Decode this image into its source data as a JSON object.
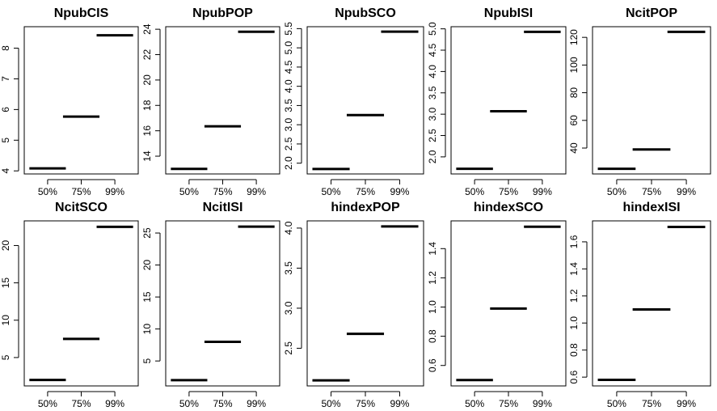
{
  "chart_data": [
    {
      "type": "bar",
      "title": "NpubCIS",
      "categories": [
        "50%",
        "75%",
        "99%"
      ],
      "values": [
        4.08,
        5.77,
        8.42
      ],
      "ylim": [
        3.9,
        8.7
      ],
      "yticks": [
        4,
        5,
        6,
        7,
        8
      ],
      "ytick_labels": [
        "4",
        "5",
        "6",
        "7",
        "8"
      ]
    },
    {
      "type": "bar",
      "title": "NpubPOP",
      "categories": [
        "50%",
        "75%",
        "99%"
      ],
      "values": [
        13.0,
        16.35,
        23.8
      ],
      "ylim": [
        12.6,
        24.2
      ],
      "yticks": [
        14,
        16,
        18,
        20,
        22,
        24
      ],
      "ytick_labels": [
        "14",
        "16",
        "18",
        "20",
        "22",
        "24"
      ]
    },
    {
      "type": "bar",
      "title": "NpubSCO",
      "categories": [
        "50%",
        "75%",
        "99%"
      ],
      "values": [
        1.85,
        3.25,
        5.42
      ],
      "ylim": [
        1.72,
        5.55
      ],
      "yticks": [
        2.0,
        2.5,
        3.0,
        3.5,
        4.0,
        4.5,
        5.0,
        5.5
      ],
      "ytick_labels": [
        "2.0",
        "2.5",
        "3.0",
        "3.5",
        "4.0",
        "4.5",
        "5.0",
        "5.5"
      ]
    },
    {
      "type": "bar",
      "title": "NpubISI",
      "categories": [
        "50%",
        "75%",
        "99%"
      ],
      "values": [
        1.72,
        3.07,
        4.93
      ],
      "ylim": [
        1.6,
        5.05
      ],
      "yticks": [
        2.0,
        2.5,
        3.0,
        3.5,
        4.0,
        4.5,
        5.0
      ],
      "ytick_labels": [
        "2.0",
        "2.5",
        "3.0",
        "3.5",
        "4.0",
        "4.5",
        "5.0"
      ]
    },
    {
      "type": "bar",
      "title": "NcitPOP",
      "categories": [
        "50%",
        "75%",
        "99%"
      ],
      "values": [
        25.0,
        39.0,
        124.0
      ],
      "ylim": [
        21.3,
        127.7
      ],
      "yticks": [
        40,
        60,
        80,
        100,
        120
      ],
      "ytick_labels": [
        "40",
        "60",
        "80",
        "100",
        "120"
      ]
    },
    {
      "type": "bar",
      "title": "NcitSCO",
      "categories": [
        "50%",
        "75%",
        "99%"
      ],
      "values": [
        2.0,
        7.5,
        22.5
      ],
      "ylim": [
        1.2,
        23.3
      ],
      "yticks": [
        5,
        10,
        15,
        20
      ],
      "ytick_labels": [
        "5",
        "10",
        "15",
        "20"
      ]
    },
    {
      "type": "bar",
      "title": "NcitISI",
      "categories": [
        "50%",
        "75%",
        "99%"
      ],
      "values": [
        2.0,
        8.0,
        26.0
      ],
      "ylim": [
        1.1,
        26.9
      ],
      "yticks": [
        5,
        10,
        15,
        20,
        25
      ],
      "ytick_labels": [
        "5",
        "10",
        "15",
        "20",
        "25"
      ]
    },
    {
      "type": "bar",
      "title": "hindexPOP",
      "categories": [
        "50%",
        "75%",
        "99%"
      ],
      "values": [
        2.1,
        2.68,
        4.02
      ],
      "ylim": [
        2.03,
        4.09
      ],
      "yticks": [
        2.5,
        3.0,
        3.5,
        4.0
      ],
      "ytick_labels": [
        "2.5",
        "3.0",
        "3.5",
        "4.0"
      ]
    },
    {
      "type": "bar",
      "title": "hindexSCO",
      "categories": [
        "50%",
        "75%",
        "99%"
      ],
      "values": [
        0.5,
        0.99,
        1.55
      ],
      "ylim": [
        0.46,
        1.59
      ],
      "yticks": [
        0.6,
        0.8,
        1.0,
        1.2,
        1.4
      ],
      "ytick_labels": [
        "0.6",
        "0.8",
        "1.0",
        "1.2",
        "1.4"
      ]
    },
    {
      "type": "bar",
      "title": "hindexISI",
      "categories": [
        "50%",
        "75%",
        "99%"
      ],
      "values": [
        0.58,
        1.1,
        1.71
      ],
      "ylim": [
        0.535,
        1.755
      ],
      "yticks": [
        0.6,
        0.8,
        1.0,
        1.2,
        1.4,
        1.6
      ],
      "ytick_labels": [
        "0.6",
        "0.8",
        "1.0",
        "1.2",
        "1.4",
        "1.6"
      ]
    }
  ]
}
